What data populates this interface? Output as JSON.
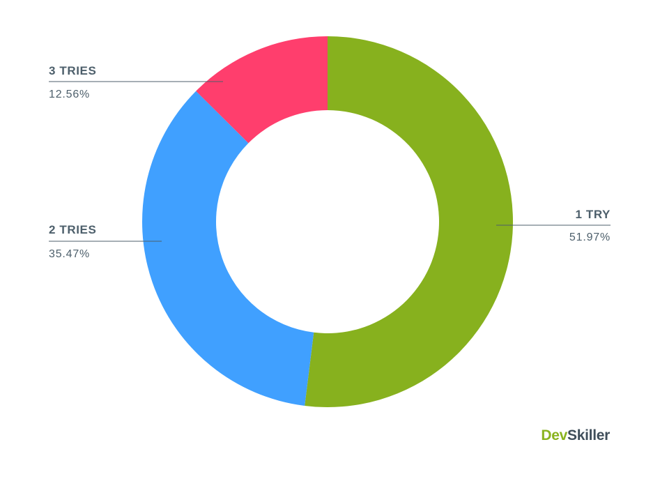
{
  "chart_data": {
    "type": "pie",
    "donut": true,
    "slices": [
      {
        "label": "1 TRY",
        "value": 51.97,
        "value_label": "51.97%",
        "color": "#87b11e"
      },
      {
        "label": "2 TRIES",
        "value": 35.47,
        "value_label": "35.47%",
        "color": "#40a0ff"
      },
      {
        "label": "3 TRIES",
        "value": 12.56,
        "value_label": "12.56%",
        "color": "#ff3e6d"
      }
    ]
  },
  "logo": {
    "part1": "Dev",
    "part2": "Skiller"
  }
}
